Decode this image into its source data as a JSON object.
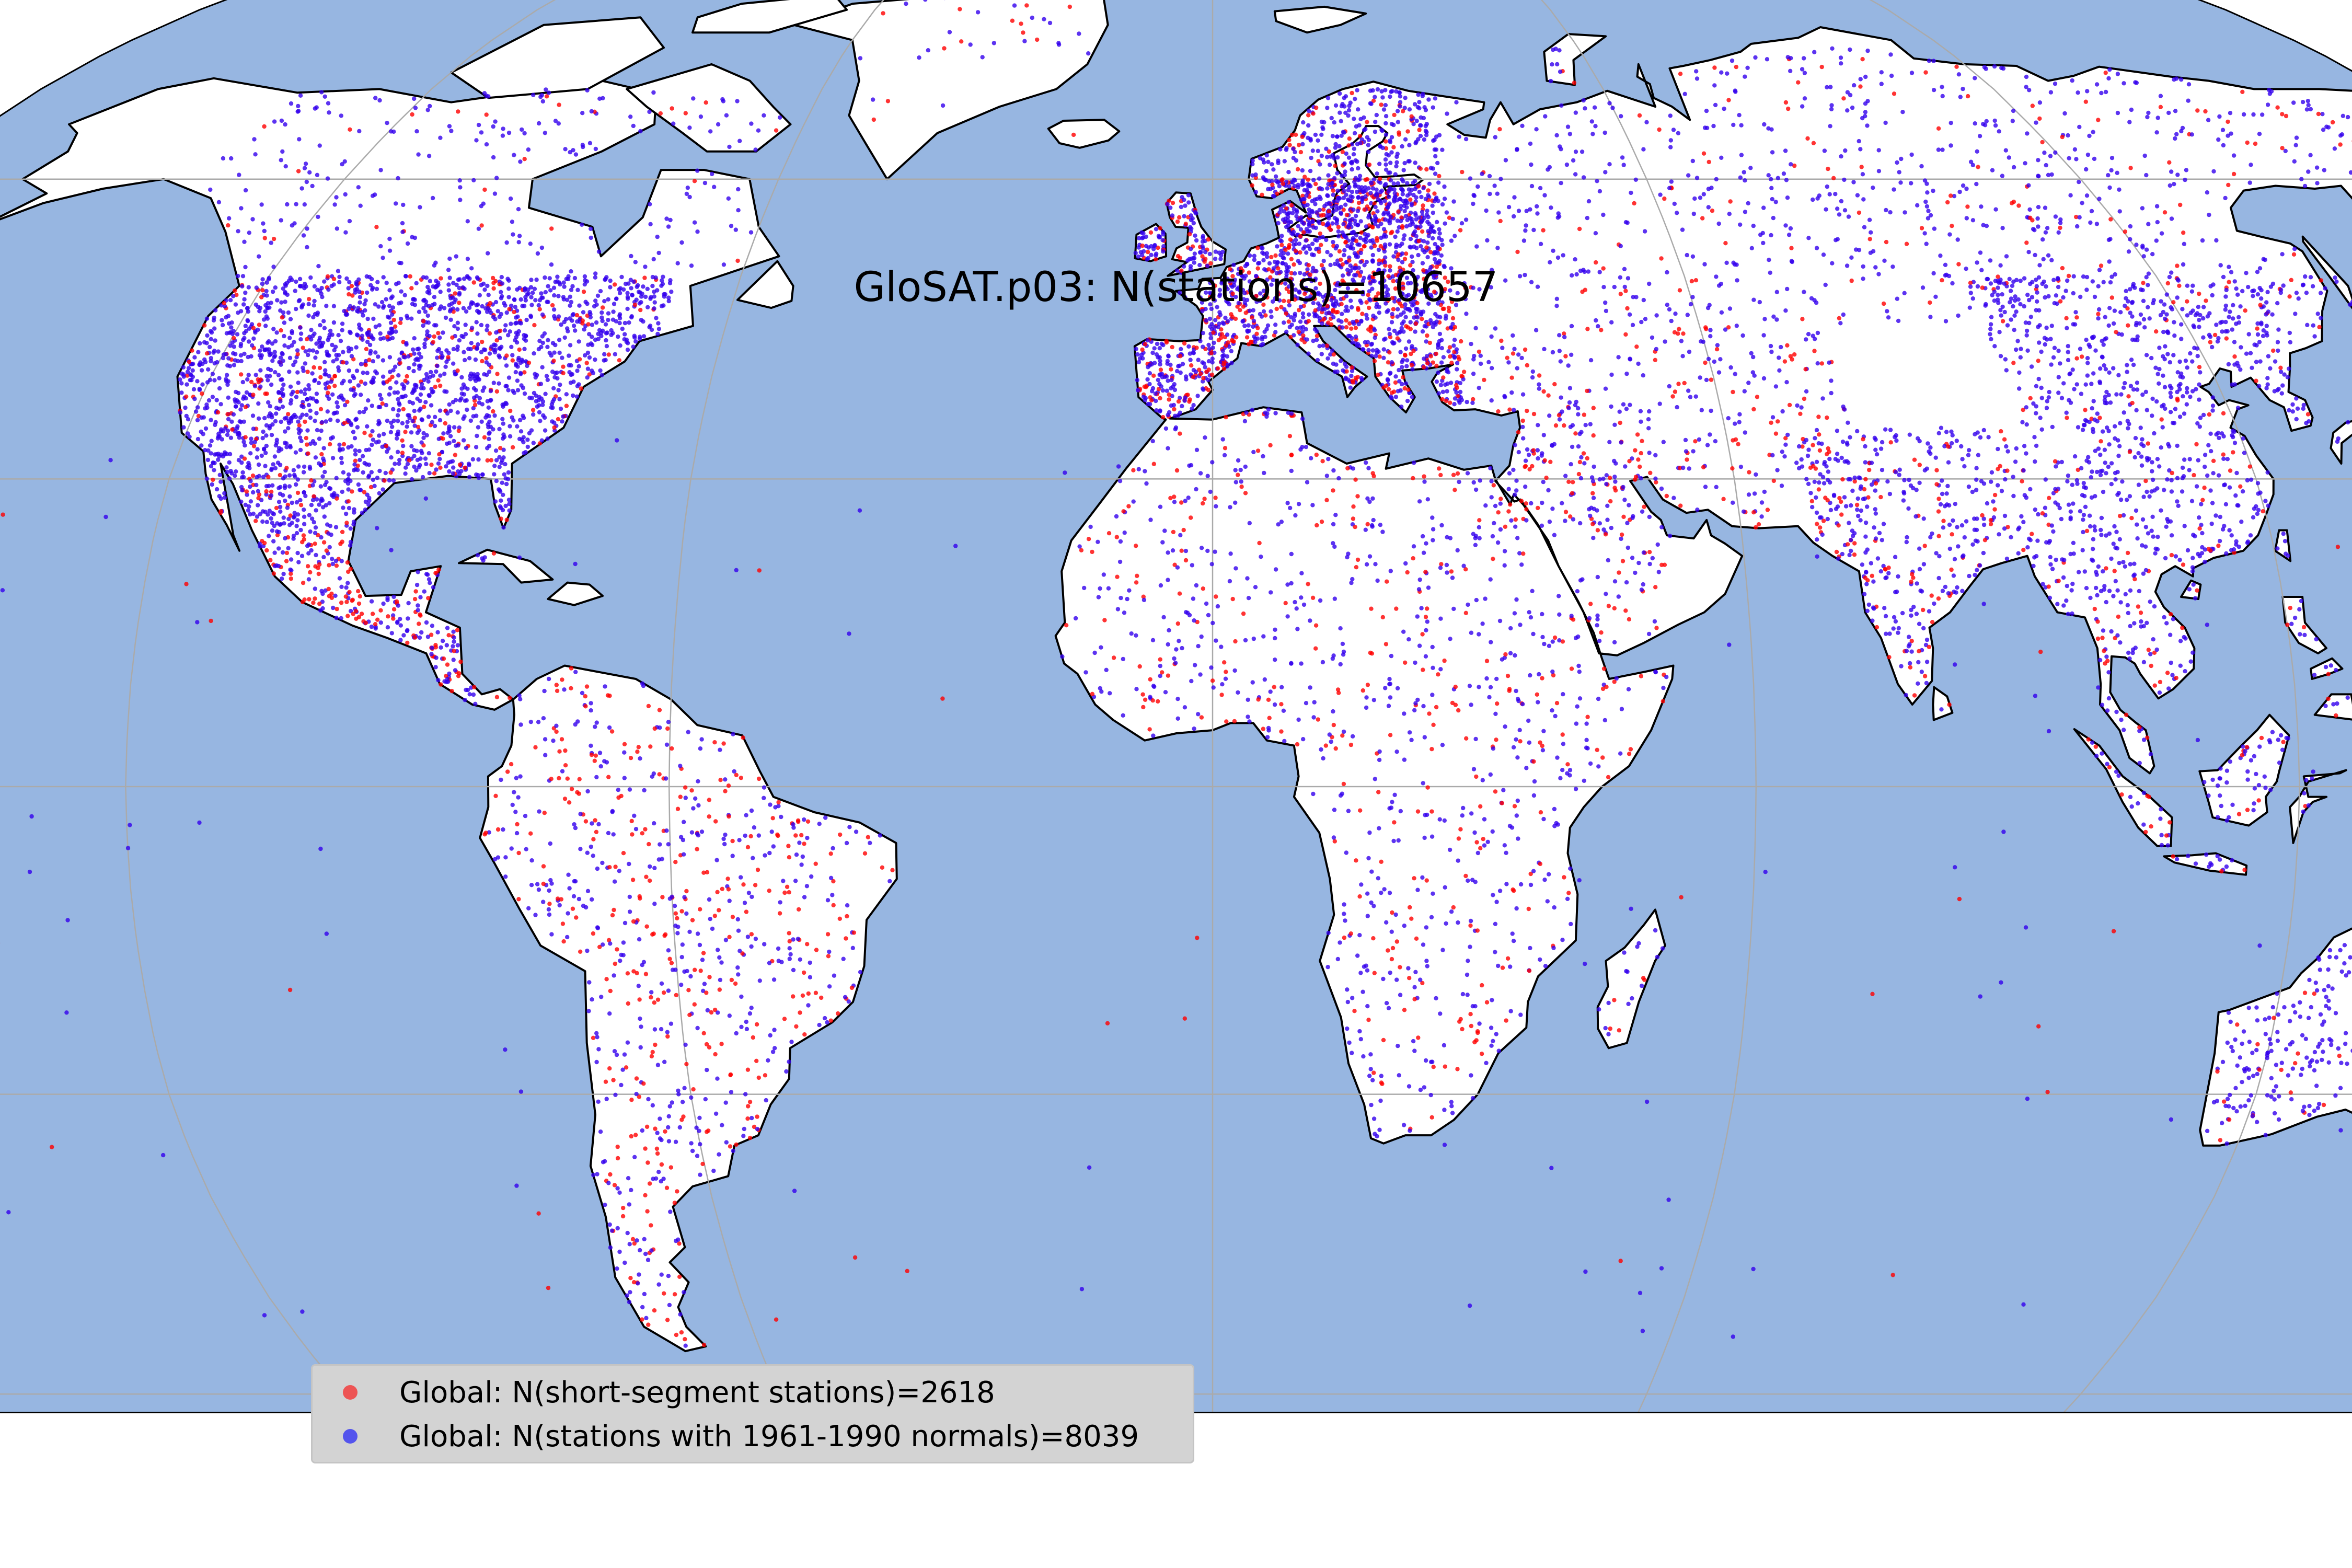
{
  "map": {
    "title": "GloSAT.p03: N(stations)=10657",
    "projection": "Robinson",
    "ocean_color": "#97b6e1",
    "land_color": "#ffffff",
    "coastline_color": "#000000",
    "gridlines": true
  },
  "legend": {
    "placement": "lower-left, below map",
    "entries": [
      {
        "label": "Global: N(short-segment stations)=2618",
        "color": "#ff0000"
      },
      {
        "label": "Global: N(stations with 1961-1990 normals)=8039",
        "color": "#0000ff"
      }
    ]
  },
  "chart_data": {
    "type": "scatter",
    "title": "GloSAT.p03: N(stations)=10657",
    "total_stations": 10657,
    "series": [
      {
        "name": "Global: N(short-segment stations)=2618",
        "count": 2618,
        "color": "#ff0000"
      },
      {
        "name": "Global: N(stations with 1961-1990 normals)=8039",
        "count": 8039,
        "color": "#0000ff"
      }
    ]
  }
}
